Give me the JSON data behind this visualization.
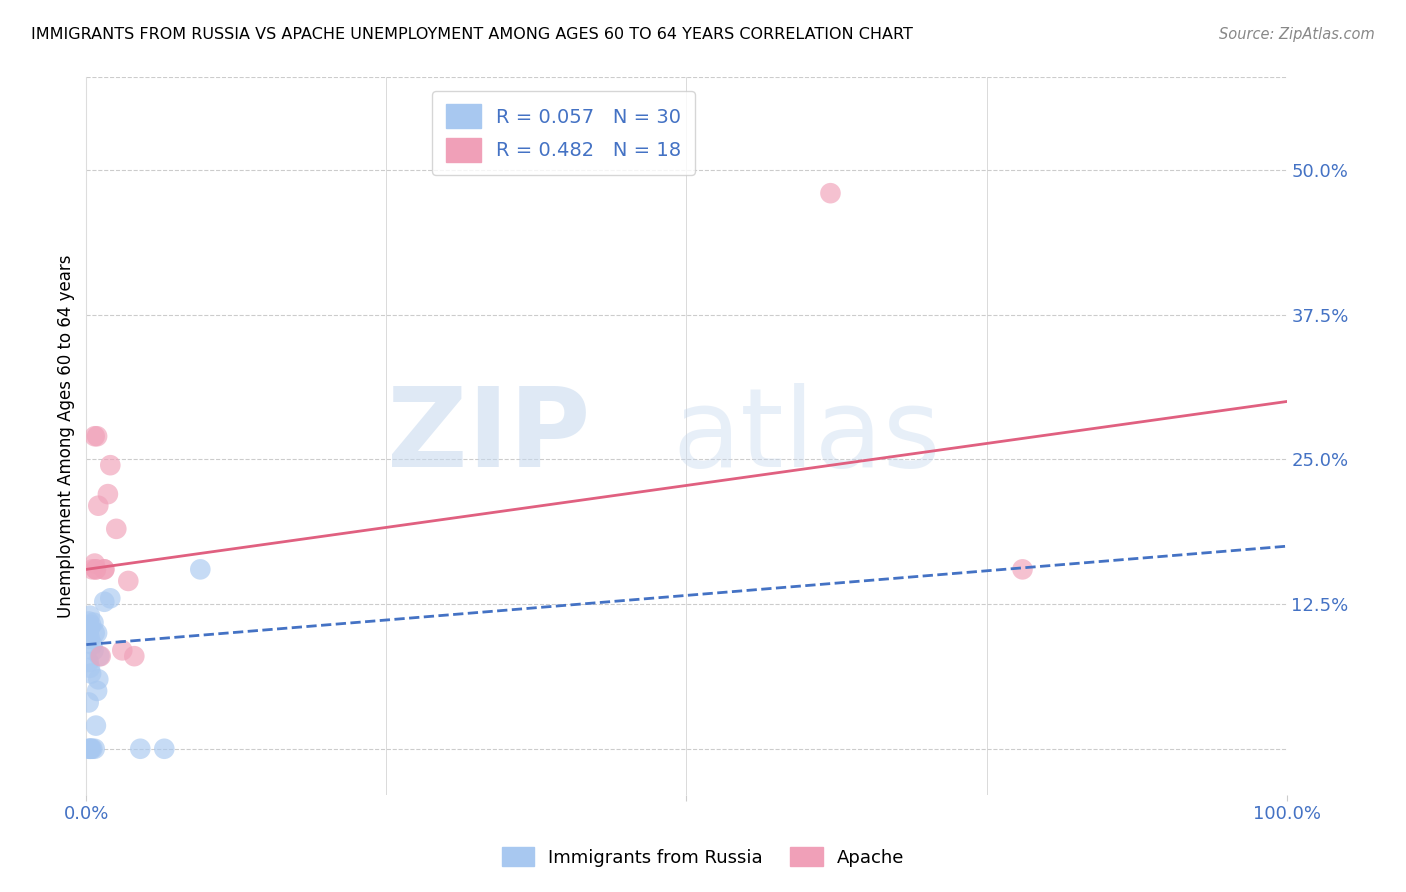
{
  "title": "IMMIGRANTS FROM RUSSIA VS APACHE UNEMPLOYMENT AMONG AGES 60 TO 64 YEARS CORRELATION CHART",
  "source": "Source: ZipAtlas.com",
  "ylabel_label": "Unemployment Among Ages 60 to 64 years",
  "ytick_labels": [
    "12.5%",
    "25.0%",
    "37.5%",
    "50.0%"
  ],
  "ytick_values": [
    0.125,
    0.25,
    0.375,
    0.5
  ],
  "xlim": [
    0.0,
    1.0
  ],
  "ylim": [
    -0.04,
    0.58
  ],
  "legend_label1": "Immigrants from Russia",
  "legend_label2": "Apache",
  "color_blue": "#a8c8f0",
  "color_pink": "#f0a0b8",
  "color_blue_line": "#4472c4",
  "color_pink_line": "#e06080",
  "russia_x": [
    0.003,
    0.005,
    0.007,
    0.008,
    0.002,
    0.009,
    0.01,
    0.004,
    0.003,
    0.002,
    0.011,
    0.006,
    0.005,
    0.003,
    0.002,
    0.007,
    0.009,
    0.003,
    0.004,
    0.006,
    0.002,
    0.003,
    0.015,
    0.02,
    0.045,
    0.004,
    0.003,
    0.002,
    0.095,
    0.065
  ],
  "russia_y": [
    0.0,
    0.0,
    0.0,
    0.02,
    0.04,
    0.05,
    0.06,
    0.065,
    0.07,
    0.075,
    0.08,
    0.085,
    0.09,
    0.095,
    0.1,
    0.1,
    0.1,
    0.105,
    0.107,
    0.109,
    0.11,
    0.115,
    0.127,
    0.13,
    0.0,
    0.0,
    0.0,
    0.0,
    0.155,
    0.0
  ],
  "apache_x": [
    0.005,
    0.007,
    0.008,
    0.01,
    0.012,
    0.015,
    0.018,
    0.02,
    0.025,
    0.03,
    0.035,
    0.04,
    0.007,
    0.009,
    0.015,
    0.008,
    0.78,
    0.62
  ],
  "apache_y": [
    0.155,
    0.16,
    0.155,
    0.21,
    0.08,
    0.155,
    0.22,
    0.245,
    0.19,
    0.085,
    0.145,
    0.08,
    0.27,
    0.27,
    0.155,
    0.155,
    0.155,
    0.48
  ],
  "blue_line_x0": 0.0,
  "blue_line_x1": 1.0,
  "blue_line_y0": 0.09,
  "blue_line_y1": 0.175,
  "pink_line_x0": 0.0,
  "pink_line_x1": 1.0,
  "pink_line_y0": 0.155,
  "pink_line_y1": 0.3
}
